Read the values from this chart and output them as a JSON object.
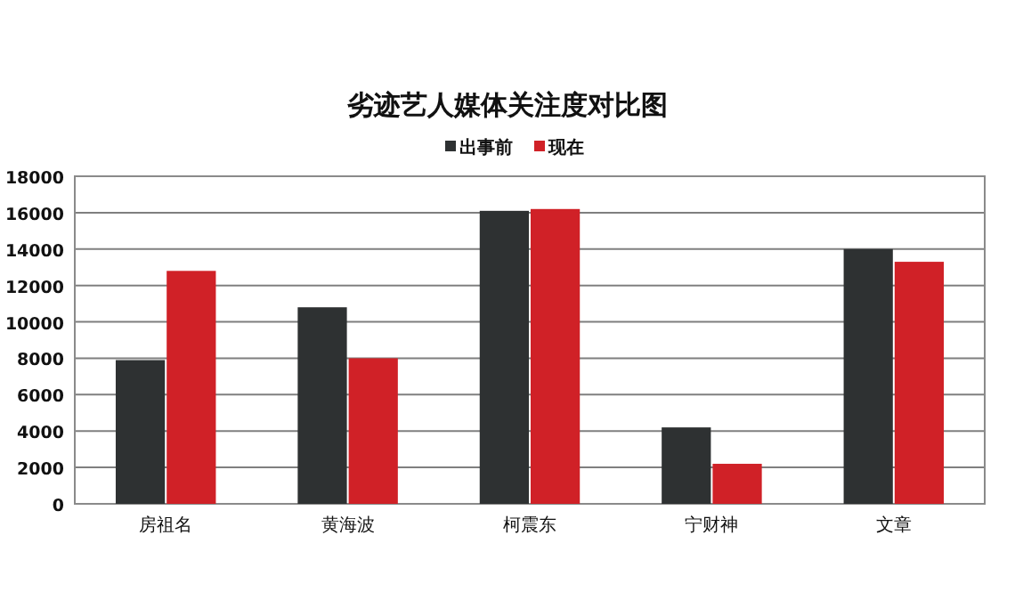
{
  "chart_data": {
    "type": "bar",
    "title": "劣迹艺人媒体关注度对比图",
    "categories": [
      "房祖名",
      "黄海波",
      "柯震东",
      "宁财神",
      "文章"
    ],
    "series": [
      {
        "name": "出事前",
        "color": "#2e3132",
        "values": [
          7900,
          10800,
          16100,
          4200,
          14000
        ]
      },
      {
        "name": "现在",
        "color": "#d02127",
        "values": [
          12800,
          8000,
          16200,
          2200,
          13300
        ]
      }
    ],
    "ylim": [
      0,
      18000
    ],
    "yticks": [
      0,
      2000,
      4000,
      6000,
      8000,
      10000,
      12000,
      14000,
      16000,
      18000
    ],
    "grid": "y",
    "legend": "top"
  }
}
